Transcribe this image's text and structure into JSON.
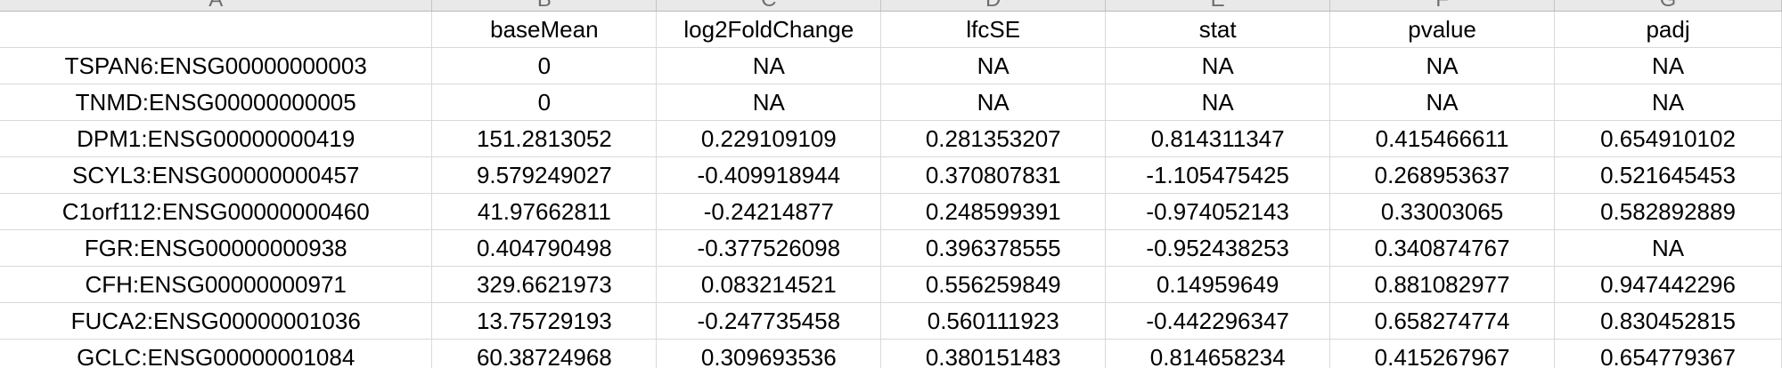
{
  "spreadsheet": {
    "column_letters": [
      "A",
      "B",
      "C",
      "D",
      "E",
      "F",
      "G"
    ],
    "header_row": [
      "",
      "baseMean",
      "log2FoldChange",
      "lfcSE",
      "stat",
      "pvalue",
      "padj"
    ],
    "rows": [
      [
        "TSPAN6:ENSG00000000003",
        "0",
        "NA",
        "NA",
        "NA",
        "NA",
        "NA"
      ],
      [
        "TNMD:ENSG00000000005",
        "0",
        "NA",
        "NA",
        "NA",
        "NA",
        "NA"
      ],
      [
        "DPM1:ENSG00000000419",
        "151.2813052",
        "0.229109109",
        "0.281353207",
        "0.814311347",
        "0.415466611",
        "0.654910102"
      ],
      [
        "SCYL3:ENSG00000000457",
        "9.579249027",
        "-0.409918944",
        "0.370807831",
        "-1.105475425",
        "0.268953637",
        "0.521645453"
      ],
      [
        "C1orf112:ENSG00000000460",
        "41.97662811",
        "-0.24214877",
        "0.248599391",
        "-0.974052143",
        "0.33003065",
        "0.582892889"
      ],
      [
        "FGR:ENSG00000000938",
        "0.404790498",
        "-0.377526098",
        "0.396378555",
        "-0.952438253",
        "0.340874767",
        "NA"
      ],
      [
        "CFH:ENSG00000000971",
        "329.6621973",
        "0.083214521",
        "0.556259849",
        "0.14959649",
        "0.881082977",
        "0.947442296"
      ],
      [
        "FUCA2:ENSG00000001036",
        "13.75729193",
        "-0.247735458",
        "0.560111923",
        "-0.442296347",
        "0.658274774",
        "0.830452815"
      ],
      [
        "GCLC:ENSG00000001084",
        "60.38724968",
        "0.309693536",
        "0.380151483",
        "0.814658234",
        "0.415267967",
        "0.654779367"
      ]
    ]
  }
}
